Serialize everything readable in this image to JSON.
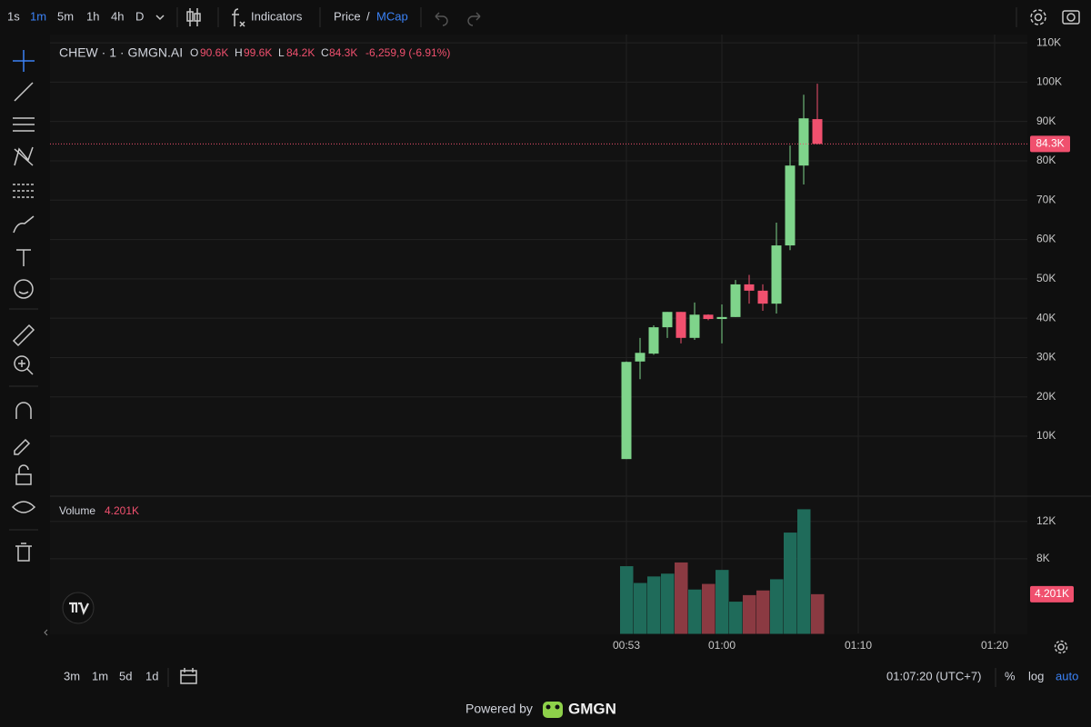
{
  "ui": {
    "intervals": [
      "1s",
      "1m",
      "5m",
      "1h",
      "4h",
      "D"
    ],
    "indicators": "Indicators",
    "price": "Price",
    "slash": "/",
    "mcap": "MCap",
    "legend": {
      "o": "O",
      "o_value": "90.6K",
      "h": "H",
      "h_value": "99.6K",
      "l": "L",
      "l_value": "84.2K",
      "c": "C",
      "c_value": "84.3K",
      "change": "-6,259,9 (-6.91%)"
    },
    "ranges": [
      "3m",
      "1m",
      "5d",
      "1d"
    ],
    "clock": "01:07:20 (UTC+7)",
    "percent": "%",
    "log": "log",
    "auto": "auto",
    "powered_by": "Powered by",
    "brand": "GMGN"
  },
  "chart_data": [
    {
      "type": "candlestick",
      "title": "CHEW · 1 · GMGN.AI",
      "categories": [
        null,
        null,
        null,
        null,
        null,
        null,
        null,
        null,
        null,
        null,
        null,
        null,
        null,
        null,
        null
      ],
      "open": [
        4200,
        29000,
        31000,
        37700,
        41600,
        35000,
        40900,
        39800,
        40300,
        48600,
        47000,
        43700,
        58500,
        78800,
        90600
      ],
      "high": [
        29000,
        35000,
        38200,
        41600,
        41600,
        44000,
        41000,
        43500,
        49700,
        51000,
        48600,
        64300,
        83900,
        96800,
        99600
      ],
      "low": [
        4200,
        24500,
        30700,
        35000,
        33600,
        34500,
        39500,
        33600,
        40300,
        43700,
        41900,
        41200,
        57300,
        74000,
        84200
      ],
      "close": [
        28900,
        31200,
        37700,
        41600,
        35000,
        40900,
        39800,
        40300,
        48600,
        47000,
        43700,
        58500,
        78800,
        90800,
        84300
      ],
      "up_color": "#7fd48b",
      "down_color": "#f0506e",
      "price_line": {
        "value": 84300,
        "label": "84.3K"
      },
      "ylim": [
        -5000,
        112100
      ],
      "yticks": [
        {
          "value": 10000,
          "label": "10K"
        },
        {
          "value": 20000,
          "label": "20K"
        },
        {
          "value": 30000,
          "label": "30K"
        },
        {
          "value": 40000,
          "label": "40K"
        },
        {
          "value": 50000,
          "label": "50K"
        },
        {
          "value": 60000,
          "label": "60K"
        },
        {
          "value": 70000,
          "label": "70K"
        },
        {
          "value": 80000,
          "label": "80K"
        },
        {
          "value": 90000,
          "label": "90K"
        },
        {
          "value": 100000,
          "label": "100K"
        },
        {
          "value": 110000,
          "label": "110K"
        }
      ],
      "xticks": [
        {
          "value": 0,
          "label": "00:53"
        },
        {
          "value": 7,
          "label": "01:00"
        },
        {
          "value": 17,
          "label": "01:10"
        },
        {
          "value": 27,
          "label": "01:20"
        }
      ],
      "grid": true
    },
    {
      "type": "bar",
      "title": "Volume",
      "values": [
        7200,
        5400,
        6100,
        6400,
        7600,
        4700,
        5300,
        6800,
        3400,
        4100,
        4600,
        5800,
        10800,
        13300,
        4201
      ],
      "value_labels": [
        null,
        null,
        null,
        null,
        null,
        null,
        null,
        null,
        null,
        null,
        null,
        null,
        null,
        null,
        "4.201K"
      ],
      "up_color": "#1f6b5a",
      "down_color": "#8b3a42",
      "ylim": [
        0,
        14700
      ],
      "yticks": [
        {
          "value": 8000,
          "label": "8K"
        },
        {
          "value": 12000,
          "label": "12K"
        }
      ],
      "grid": true
    }
  ]
}
